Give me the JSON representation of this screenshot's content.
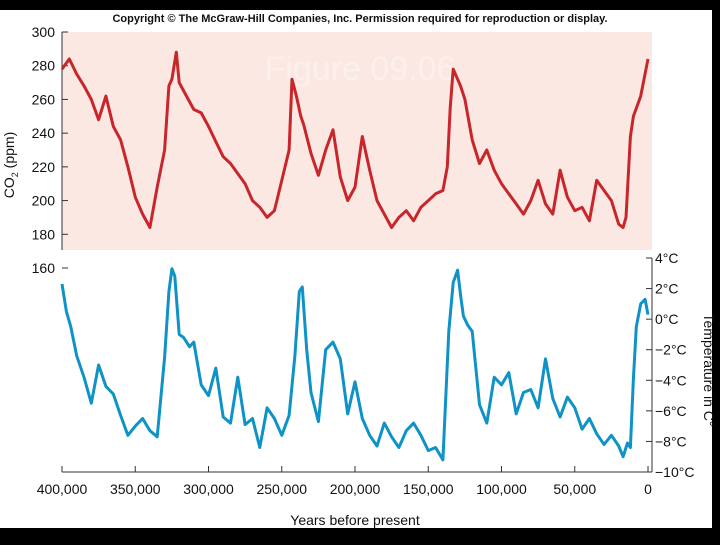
{
  "copyright": "Copyright © The McGraw-Hill Companies, Inc. Permission required for reproduction or display.",
  "slide_title": "Figure 09.06",
  "colors": {
    "co2_line": "#c8262b",
    "co2_band": "#fbe8e3",
    "temp_line": "#0f93c6",
    "slide_bg": "#000000",
    "plot_bg": "#ffffff"
  },
  "chart_data": {
    "type": "line",
    "x_unit": "Years before present",
    "xlabel": "Years before present",
    "xlim": [
      400000,
      0
    ],
    "x_ticks": [
      "400,000",
      "350,000",
      "300,000",
      "250,000",
      "200,000",
      "150,000",
      "100,000",
      "50,000",
      "0"
    ],
    "x_tick_values": [
      400000,
      350000,
      300000,
      250000,
      200000,
      150000,
      100000,
      50000,
      0
    ],
    "co2": {
      "ylabel_main": "CO",
      "ylabel_sub": "2",
      "ylabel_unit": " (ppm)",
      "ylim": [
        160,
        300
      ],
      "y_ticks": [
        "300",
        "280",
        "260",
        "240",
        "220",
        "200",
        "180",
        "160"
      ],
      "y_tick_values": [
        300,
        280,
        260,
        240,
        220,
        200,
        180,
        160
      ],
      "x": [
        400000,
        395000,
        390000,
        385000,
        380000,
        375000,
        370000,
        365000,
        360000,
        355000,
        350000,
        345000,
        340000,
        335000,
        330000,
        327000,
        325000,
        322000,
        320000,
        315000,
        310000,
        305000,
        300000,
        295000,
        290000,
        285000,
        280000,
        275000,
        270000,
        265000,
        260000,
        255000,
        250000,
        245000,
        243000,
        240000,
        237000,
        235000,
        230000,
        225000,
        220000,
        215000,
        210000,
        205000,
        200000,
        195000,
        190000,
        185000,
        180000,
        175000,
        170000,
        165000,
        160000,
        155000,
        150000,
        145000,
        140000,
        137000,
        135000,
        133000,
        130000,
        128000,
        125000,
        120000,
        115000,
        110000,
        105000,
        100000,
        95000,
        90000,
        85000,
        80000,
        75000,
        70000,
        65000,
        60000,
        55000,
        50000,
        45000,
        40000,
        35000,
        30000,
        25000,
        20000,
        17000,
        15000,
        12000,
        10000,
        5000,
        0
      ],
      "values": [
        278,
        284,
        275,
        268,
        260,
        248,
        262,
        244,
        236,
        220,
        202,
        192,
        184,
        208,
        230,
        268,
        272,
        288,
        270,
        262,
        254,
        252,
        244,
        235,
        226,
        222,
        216,
        210,
        200,
        196,
        190,
        194,
        212,
        230,
        272,
        262,
        250,
        245,
        228,
        215,
        230,
        242,
        214,
        200,
        208,
        238,
        218,
        200,
        192,
        184,
        190,
        194,
        188,
        196,
        200,
        204,
        206,
        220,
        255,
        278,
        272,
        268,
        260,
        236,
        222,
        230,
        218,
        210,
        204,
        198,
        192,
        200,
        212,
        198,
        192,
        218,
        202,
        194,
        196,
        188,
        212,
        206,
        200,
        186,
        184,
        190,
        238,
        250,
        262,
        284
      ]
    },
    "temperature": {
      "ylabel": "Temperature in C°",
      "ylim": [
        -10,
        4
      ],
      "y_ticks": [
        "4°C",
        "2°C",
        "0°C",
        "−2°C",
        "−4°C",
        "−6°C",
        "−8°C",
        "−10°C"
      ],
      "y_tick_values": [
        4,
        2,
        0,
        -2,
        -4,
        -6,
        -8,
        -10
      ],
      "x": [
        400000,
        397000,
        394000,
        390000,
        385000,
        380000,
        375000,
        370000,
        365000,
        360000,
        355000,
        350000,
        345000,
        340000,
        335000,
        330000,
        327000,
        325000,
        323000,
        320000,
        317000,
        313000,
        310000,
        305000,
        300000,
        295000,
        290000,
        285000,
        280000,
        275000,
        270000,
        265000,
        260000,
        255000,
        250000,
        245000,
        241000,
        238000,
        236000,
        233000,
        230000,
        225000,
        220000,
        215000,
        210000,
        205000,
        200000,
        195000,
        190000,
        185000,
        180000,
        175000,
        170000,
        165000,
        160000,
        155000,
        150000,
        145000,
        140000,
        136000,
        133000,
        130000,
        128000,
        126000,
        123000,
        120000,
        115000,
        110000,
        105000,
        100000,
        95000,
        90000,
        85000,
        80000,
        75000,
        70000,
        65000,
        60000,
        55000,
        50000,
        45000,
        40000,
        35000,
        30000,
        25000,
        20000,
        17000,
        14000,
        12000,
        10000,
        8000,
        5000,
        2000,
        0
      ],
      "values": [
        2.3,
        0.5,
        -0.5,
        -2.4,
        -3.8,
        -5.5,
        -3.0,
        -4.4,
        -4.9,
        -6.3,
        -7.6,
        -7.0,
        -6.5,
        -7.3,
        -7.7,
        -2.5,
        1.8,
        3.3,
        2.8,
        -1.0,
        -1.2,
        -1.8,
        -1.5,
        -4.3,
        -5.0,
        -3.2,
        -6.4,
        -6.8,
        -3.8,
        -6.9,
        -6.5,
        -8.4,
        -5.8,
        -6.5,
        -7.6,
        -6.3,
        -2.4,
        1.8,
        2.1,
        -2.0,
        -4.8,
        -6.7,
        -2.0,
        -1.5,
        -2.6,
        -6.2,
        -4.1,
        -6.5,
        -7.6,
        -8.3,
        -6.8,
        -7.7,
        -8.4,
        -7.3,
        -6.8,
        -7.6,
        -8.6,
        -8.4,
        -9.2,
        -0.8,
        2.4,
        3.2,
        1.6,
        0.2,
        -0.4,
        -0.8,
        -5.6,
        -6.8,
        -3.8,
        -4.3,
        -3.5,
        -6.2,
        -4.8,
        -4.6,
        -5.8,
        -2.6,
        -5.2,
        -6.4,
        -5.1,
        -5.8,
        -7.2,
        -6.5,
        -7.5,
        -8.2,
        -7.6,
        -8.3,
        -9.0,
        -8.1,
        -8.4,
        -3.9,
        -0.5,
        1.0,
        1.3,
        0.3
      ]
    }
  }
}
